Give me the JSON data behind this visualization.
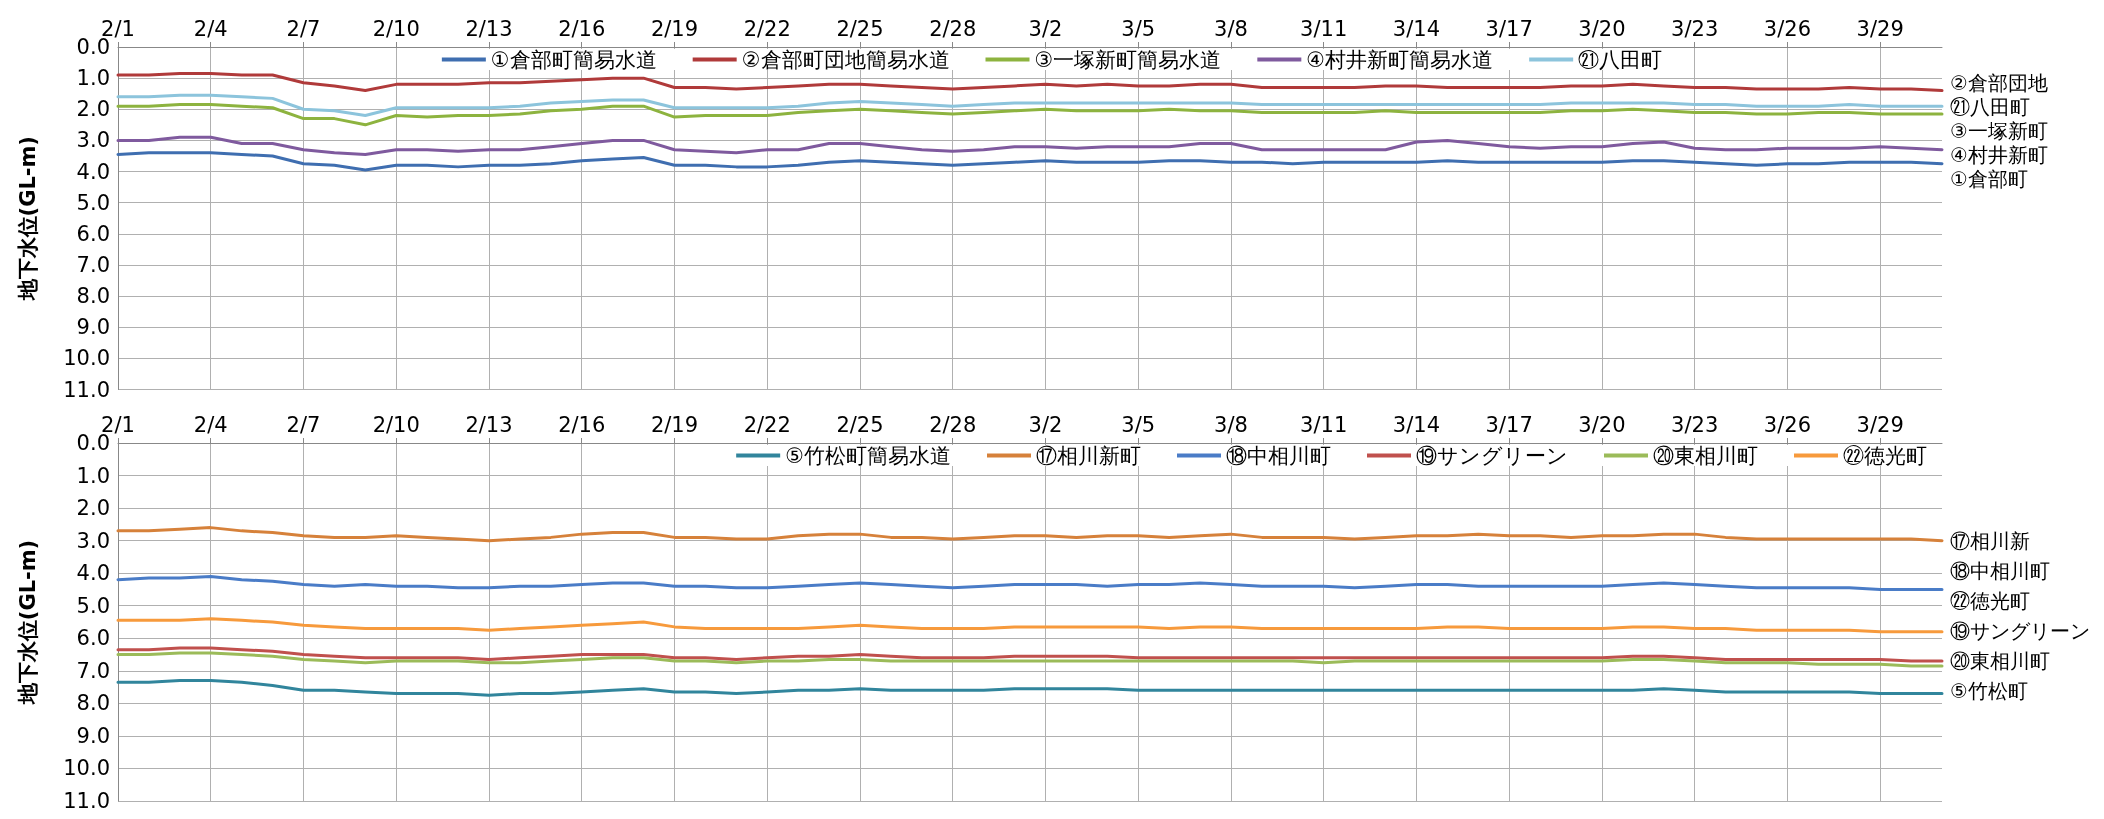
{
  "chart_data": [
    {
      "type": "line",
      "ylabel": "地下水位(GL-m)",
      "x": [
        "--02-01",
        "--02-02",
        "--02-03",
        "--02-04",
        "--02-05",
        "--02-06",
        "--02-07",
        "--02-08",
        "--02-09",
        "--02-10",
        "--02-11",
        "--02-12",
        "--02-13",
        "--02-14",
        "--02-15",
        "--02-16",
        "--02-17",
        "--02-18",
        "--02-19",
        "--02-20",
        "--02-21",
        "--02-22",
        "--02-23",
        "--02-24",
        "--02-25",
        "--02-26",
        "--02-27",
        "--02-28",
        "--02-29",
        "--03-01",
        "--03-02",
        "--03-03",
        "--03-04",
        "--03-05",
        "--03-06",
        "--03-07",
        "--03-08",
        "--03-09",
        "--03-10",
        "--03-11",
        "--03-12",
        "--03-13",
        "--03-14",
        "--03-15",
        "--03-16",
        "--03-17",
        "--03-18",
        "--03-19",
        "--03-20",
        "--03-21",
        "--03-22",
        "--03-23",
        "--03-24",
        "--03-25",
        "--03-26",
        "--03-27",
        "--03-28",
        "--03-29",
        "--03-30",
        "--03-31"
      ],
      "xlim": [
        "--02-01",
        "--03-31"
      ],
      "xticks": [
        {
          "value": "--02-01",
          "label": "2/1"
        },
        {
          "value": "--02-04",
          "label": "2/4"
        },
        {
          "value": "--02-07",
          "label": "2/7"
        },
        {
          "value": "--02-10",
          "label": "2/10"
        },
        {
          "value": "--02-13",
          "label": "2/13"
        },
        {
          "value": "--02-16",
          "label": "2/16"
        },
        {
          "value": "--02-19",
          "label": "2/19"
        },
        {
          "value": "--02-22",
          "label": "2/22"
        },
        {
          "value": "--02-25",
          "label": "2/25"
        },
        {
          "value": "--02-28",
          "label": "2/28"
        },
        {
          "value": "--03-02",
          "label": "3/2"
        },
        {
          "value": "--03-05",
          "label": "3/5"
        },
        {
          "value": "--03-08",
          "label": "3/8"
        },
        {
          "value": "--03-11",
          "label": "3/11"
        },
        {
          "value": "--03-14",
          "label": "3/14"
        },
        {
          "value": "--03-17",
          "label": "3/17"
        },
        {
          "value": "--03-20",
          "label": "3/20"
        },
        {
          "value": "--03-23",
          "label": "3/23"
        },
        {
          "value": "--03-26",
          "label": "3/26"
        },
        {
          "value": "--03-29",
          "label": "3/29"
        }
      ],
      "ylim": [
        11,
        0
      ],
      "yticks": [
        {
          "value": 0,
          "label": "0.0"
        },
        {
          "value": 1,
          "label": "1.0"
        },
        {
          "value": 2,
          "label": "2.0"
        },
        {
          "value": 3,
          "label": "3.0"
        },
        {
          "value": 4,
          "label": "4.0"
        },
        {
          "value": 5,
          "label": "5.0"
        },
        {
          "value": 6,
          "label": "6.0"
        },
        {
          "value": 7,
          "label": "7.0"
        },
        {
          "value": 8,
          "label": "8.0"
        },
        {
          "value": 9,
          "label": "9.0"
        },
        {
          "value": 10,
          "label": "10.0"
        },
        {
          "value": 11,
          "label": "11.0"
        }
      ],
      "grid": true,
      "legend": "top",
      "marker": "none",
      "line_style": "solid",
      "series": [
        {
          "name": "①倉部町簡易水道",
          "color": "#3f6eb0",
          "values": [
            3.45,
            3.4,
            3.4,
            3.4,
            3.45,
            3.5,
            3.75,
            3.8,
            3.95,
            3.8,
            3.8,
            3.85,
            3.8,
            3.8,
            3.75,
            3.65,
            3.6,
            3.55,
            3.8,
            3.8,
            3.85,
            3.85,
            3.8,
            3.7,
            3.65,
            3.7,
            3.75,
            3.8,
            3.75,
            3.7,
            3.65,
            3.7,
            3.7,
            3.7,
            3.65,
            3.65,
            3.7,
            3.7,
            3.75,
            3.7,
            3.7,
            3.7,
            3.7,
            3.65,
            3.7,
            3.7,
            3.7,
            3.7,
            3.7,
            3.65,
            3.65,
            3.7,
            3.75,
            3.8,
            3.75,
            3.75,
            3.7,
            3.7,
            3.7,
            3.75
          ]
        },
        {
          "name": "②倉部町団地簡易水道",
          "color": "#b03a3a",
          "values": [
            0.9,
            0.9,
            0.85,
            0.85,
            0.9,
            0.9,
            1.15,
            1.25,
            1.4,
            1.2,
            1.2,
            1.2,
            1.15,
            1.15,
            1.1,
            1.05,
            1.0,
            1.0,
            1.3,
            1.3,
            1.35,
            1.3,
            1.25,
            1.2,
            1.2,
            1.25,
            1.3,
            1.35,
            1.3,
            1.25,
            1.2,
            1.25,
            1.2,
            1.25,
            1.25,
            1.2,
            1.2,
            1.3,
            1.3,
            1.3,
            1.3,
            1.25,
            1.25,
            1.3,
            1.3,
            1.3,
            1.3,
            1.25,
            1.25,
            1.2,
            1.25,
            1.3,
            1.3,
            1.35,
            1.35,
            1.35,
            1.3,
            1.35,
            1.35,
            1.4
          ]
        },
        {
          "name": "③一塚新町簡易水道",
          "color": "#8db33f",
          "values": [
            1.9,
            1.9,
            1.85,
            1.85,
            1.9,
            1.95,
            2.3,
            2.3,
            2.5,
            2.2,
            2.25,
            2.2,
            2.2,
            2.15,
            2.05,
            2.0,
            1.9,
            1.9,
            2.25,
            2.2,
            2.2,
            2.2,
            2.1,
            2.05,
            2.0,
            2.05,
            2.1,
            2.15,
            2.1,
            2.05,
            2.0,
            2.05,
            2.05,
            2.05,
            2.0,
            2.05,
            2.05,
            2.1,
            2.1,
            2.1,
            2.1,
            2.05,
            2.1,
            2.1,
            2.1,
            2.1,
            2.1,
            2.05,
            2.05,
            2.0,
            2.05,
            2.1,
            2.1,
            2.15,
            2.15,
            2.1,
            2.1,
            2.15,
            2.15,
            2.15
          ]
        },
        {
          "name": "④村井新町簡易水道",
          "color": "#7f5a9e",
          "values": [
            3.0,
            3.0,
            2.9,
            2.9,
            3.1,
            3.1,
            3.3,
            3.4,
            3.45,
            3.3,
            3.3,
            3.35,
            3.3,
            3.3,
            3.2,
            3.1,
            3.0,
            3.0,
            3.3,
            3.35,
            3.4,
            3.3,
            3.3,
            3.1,
            3.1,
            3.2,
            3.3,
            3.35,
            3.3,
            3.2,
            3.2,
            3.25,
            3.2,
            3.2,
            3.2,
            3.1,
            3.1,
            3.3,
            3.3,
            3.3,
            3.3,
            3.3,
            3.05,
            3.0,
            3.1,
            3.2,
            3.25,
            3.2,
            3.2,
            3.1,
            3.05,
            3.25,
            3.3,
            3.3,
            3.25,
            3.25,
            3.25,
            3.2,
            3.25,
            3.3
          ]
        },
        {
          "name": "㉑八田町",
          "color": "#8cc4dc",
          "values": [
            1.6,
            1.6,
            1.55,
            1.55,
            1.6,
            1.65,
            2.0,
            2.05,
            2.2,
            1.95,
            1.95,
            1.95,
            1.95,
            1.9,
            1.8,
            1.75,
            1.7,
            1.7,
            1.95,
            1.95,
            1.95,
            1.95,
            1.9,
            1.8,
            1.75,
            1.8,
            1.85,
            1.9,
            1.85,
            1.8,
            1.8,
            1.8,
            1.8,
            1.8,
            1.8,
            1.8,
            1.8,
            1.85,
            1.85,
            1.85,
            1.85,
            1.85,
            1.85,
            1.85,
            1.85,
            1.85,
            1.85,
            1.8,
            1.8,
            1.8,
            1.8,
            1.85,
            1.85,
            1.9,
            1.9,
            1.9,
            1.85,
            1.9,
            1.9,
            1.9
          ]
        }
      ],
      "annotations": [
        "②倉部団地",
        "㉑八田町",
        "③一塚新町",
        "④村井新町",
        "①倉部町"
      ]
    },
    {
      "type": "line",
      "ylabel": "地下水位(GL-m)",
      "x": [
        "--02-01",
        "--02-02",
        "--02-03",
        "--02-04",
        "--02-05",
        "--02-06",
        "--02-07",
        "--02-08",
        "--02-09",
        "--02-10",
        "--02-11",
        "--02-12",
        "--02-13",
        "--02-14",
        "--02-15",
        "--02-16",
        "--02-17",
        "--02-18",
        "--02-19",
        "--02-20",
        "--02-21",
        "--02-22",
        "--02-23",
        "--02-24",
        "--02-25",
        "--02-26",
        "--02-27",
        "--02-28",
        "--02-29",
        "--03-01",
        "--03-02",
        "--03-03",
        "--03-04",
        "--03-05",
        "--03-06",
        "--03-07",
        "--03-08",
        "--03-09",
        "--03-10",
        "--03-11",
        "--03-12",
        "--03-13",
        "--03-14",
        "--03-15",
        "--03-16",
        "--03-17",
        "--03-18",
        "--03-19",
        "--03-20",
        "--03-21",
        "--03-22",
        "--03-23",
        "--03-24",
        "--03-25",
        "--03-26",
        "--03-27",
        "--03-28",
        "--03-29",
        "--03-30",
        "--03-31"
      ],
      "xlim": [
        "--02-01",
        "--03-31"
      ],
      "xticks": [
        {
          "value": "--02-01",
          "label": "2/1"
        },
        {
          "value": "--02-04",
          "label": "2/4"
        },
        {
          "value": "--02-07",
          "label": "2/7"
        },
        {
          "value": "--02-10",
          "label": "2/10"
        },
        {
          "value": "--02-13",
          "label": "2/13"
        },
        {
          "value": "--02-16",
          "label": "2/16"
        },
        {
          "value": "--02-19",
          "label": "2/19"
        },
        {
          "value": "--02-22",
          "label": "2/22"
        },
        {
          "value": "--02-25",
          "label": "2/25"
        },
        {
          "value": "--02-28",
          "label": "2/28"
        },
        {
          "value": "--03-02",
          "label": "3/2"
        },
        {
          "value": "--03-05",
          "label": "3/5"
        },
        {
          "value": "--03-08",
          "label": "3/8"
        },
        {
          "value": "--03-11",
          "label": "3/11"
        },
        {
          "value": "--03-14",
          "label": "3/14"
        },
        {
          "value": "--03-17",
          "label": "3/17"
        },
        {
          "value": "--03-20",
          "label": "3/20"
        },
        {
          "value": "--03-23",
          "label": "3/23"
        },
        {
          "value": "--03-26",
          "label": "3/26"
        },
        {
          "value": "--03-29",
          "label": "3/29"
        }
      ],
      "ylim": [
        11,
        0
      ],
      "yticks": [
        {
          "value": 0,
          "label": "0.0"
        },
        {
          "value": 1,
          "label": "1.0"
        },
        {
          "value": 2,
          "label": "2.0"
        },
        {
          "value": 3,
          "label": "3.0"
        },
        {
          "value": 4,
          "label": "4.0"
        },
        {
          "value": 5,
          "label": "5.0"
        },
        {
          "value": 6,
          "label": "6.0"
        },
        {
          "value": 7,
          "label": "7.0"
        },
        {
          "value": 8,
          "label": "8.0"
        },
        {
          "value": 9,
          "label": "9.0"
        },
        {
          "value": 10,
          "label": "10.0"
        },
        {
          "value": 11,
          "label": "11.0"
        }
      ],
      "grid": true,
      "legend": "top right",
      "marker": "none",
      "line_style": "solid",
      "series": [
        {
          "name": "⑤竹松町簡易水道",
          "color": "#31859c",
          "values": [
            7.35,
            7.35,
            7.3,
            7.3,
            7.35,
            7.45,
            7.6,
            7.6,
            7.65,
            7.7,
            7.7,
            7.7,
            7.75,
            7.7,
            7.7,
            7.65,
            7.6,
            7.55,
            7.65,
            7.65,
            7.7,
            7.65,
            7.6,
            7.6,
            7.55,
            7.6,
            7.6,
            7.6,
            7.6,
            7.55,
            7.55,
            7.55,
            7.55,
            7.6,
            7.6,
            7.6,
            7.6,
            7.6,
            7.6,
            7.6,
            7.6,
            7.6,
            7.6,
            7.6,
            7.6,
            7.6,
            7.6,
            7.6,
            7.6,
            7.6,
            7.55,
            7.6,
            7.65,
            7.65,
            7.65,
            7.65,
            7.65,
            7.7,
            7.7,
            7.7
          ]
        },
        {
          "name": "⑰相川新町",
          "color": "#d6813a",
          "values": [
            2.7,
            2.7,
            2.65,
            2.6,
            2.7,
            2.75,
            2.85,
            2.9,
            2.9,
            2.85,
            2.9,
            2.95,
            3.0,
            2.95,
            2.9,
            2.8,
            2.75,
            2.75,
            2.9,
            2.9,
            2.95,
            2.95,
            2.85,
            2.8,
            2.8,
            2.9,
            2.9,
            2.95,
            2.9,
            2.85,
            2.85,
            2.9,
            2.85,
            2.85,
            2.9,
            2.85,
            2.8,
            2.9,
            2.9,
            2.9,
            2.95,
            2.9,
            2.85,
            2.85,
            2.8,
            2.85,
            2.85,
            2.9,
            2.85,
            2.85,
            2.8,
            2.8,
            2.9,
            2.95,
            2.95,
            2.95,
            2.95,
            2.95,
            2.95,
            3.0
          ]
        },
        {
          "name": "⑱中相川町",
          "color": "#4a7cc7",
          "values": [
            4.2,
            4.15,
            4.15,
            4.1,
            4.2,
            4.25,
            4.35,
            4.4,
            4.35,
            4.4,
            4.4,
            4.45,
            4.45,
            4.4,
            4.4,
            4.35,
            4.3,
            4.3,
            4.4,
            4.4,
            4.45,
            4.45,
            4.4,
            4.35,
            4.3,
            4.35,
            4.4,
            4.45,
            4.4,
            4.35,
            4.35,
            4.35,
            4.4,
            4.35,
            4.35,
            4.3,
            4.35,
            4.4,
            4.4,
            4.4,
            4.45,
            4.4,
            4.35,
            4.35,
            4.4,
            4.4,
            4.4,
            4.4,
            4.4,
            4.35,
            4.3,
            4.35,
            4.4,
            4.45,
            4.45,
            4.45,
            4.45,
            4.5,
            4.5,
            4.5
          ]
        },
        {
          "name": "⑲サングリーン",
          "color": "#c0504d",
          "values": [
            6.35,
            6.35,
            6.3,
            6.3,
            6.35,
            6.4,
            6.5,
            6.55,
            6.6,
            6.6,
            6.6,
            6.6,
            6.65,
            6.6,
            6.55,
            6.5,
            6.5,
            6.5,
            6.6,
            6.6,
            6.65,
            6.6,
            6.55,
            6.55,
            6.5,
            6.55,
            6.6,
            6.6,
            6.6,
            6.55,
            6.55,
            6.55,
            6.55,
            6.6,
            6.6,
            6.6,
            6.6,
            6.6,
            6.6,
            6.6,
            6.6,
            6.6,
            6.6,
            6.6,
            6.6,
            6.6,
            6.6,
            6.6,
            6.6,
            6.55,
            6.55,
            6.6,
            6.65,
            6.65,
            6.65,
            6.65,
            6.65,
            6.65,
            6.7,
            6.7
          ]
        },
        {
          "name": "⑳東相川町",
          "color": "#9bbb59",
          "values": [
            6.5,
            6.5,
            6.45,
            6.45,
            6.5,
            6.55,
            6.65,
            6.7,
            6.75,
            6.7,
            6.7,
            6.7,
            6.75,
            6.75,
            6.7,
            6.65,
            6.6,
            6.6,
            6.7,
            6.7,
            6.75,
            6.7,
            6.7,
            6.65,
            6.65,
            6.7,
            6.7,
            6.7,
            6.7,
            6.7,
            6.7,
            6.7,
            6.7,
            6.7,
            6.7,
            6.7,
            6.7,
            6.7,
            6.7,
            6.75,
            6.7,
            6.7,
            6.7,
            6.7,
            6.7,
            6.7,
            6.7,
            6.7,
            6.7,
            6.65,
            6.65,
            6.7,
            6.75,
            6.75,
            6.75,
            6.8,
            6.8,
            6.8,
            6.85,
            6.85
          ]
        },
        {
          "name": "㉒徳光町",
          "color": "#f79a3c",
          "values": [
            5.45,
            5.45,
            5.45,
            5.4,
            5.45,
            5.5,
            5.6,
            5.65,
            5.7,
            5.7,
            5.7,
            5.7,
            5.75,
            5.7,
            5.65,
            5.6,
            5.55,
            5.5,
            5.65,
            5.7,
            5.7,
            5.7,
            5.7,
            5.65,
            5.6,
            5.65,
            5.7,
            5.7,
            5.7,
            5.65,
            5.65,
            5.65,
            5.65,
            5.65,
            5.7,
            5.65,
            5.65,
            5.7,
            5.7,
            5.7,
            5.7,
            5.7,
            5.7,
            5.65,
            5.65,
            5.7,
            5.7,
            5.7,
            5.7,
            5.65,
            5.65,
            5.7,
            5.7,
            5.75,
            5.75,
            5.75,
            5.75,
            5.8,
            5.8,
            5.8
          ]
        }
      ],
      "annotations": [
        "⑰相川新",
        "⑱中相川町",
        "㉒徳光町",
        "⑲サングリーン",
        "⑳東相川町",
        "⑤竹松町"
      ]
    }
  ]
}
